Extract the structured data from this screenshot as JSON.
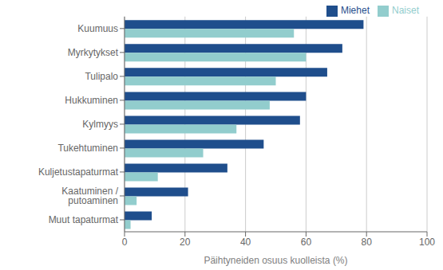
{
  "chart_data": {
    "type": "bar",
    "orientation": "horizontal",
    "categories": [
      "Kuumuus",
      "Myrkytykset",
      "Tulipalo",
      "Hukkuminen",
      "Kylmyys",
      "Tukehtuminen",
      "Kuljetustapaturmat",
      "Kaatuminen / putoaminen",
      "Muut tapaturmat"
    ],
    "series": [
      {
        "name": "Miehet",
        "color": "#1F4E8C",
        "values": [
          79,
          72,
          67,
          60,
          58,
          46,
          34,
          21,
          9
        ]
      },
      {
        "name": "Naiset",
        "color": "#92CDCD",
        "values": [
          56,
          60,
          50,
          48,
          37,
          26,
          11,
          4,
          2
        ]
      }
    ],
    "xlabel": "Päihtyneiden osuus kuolleista (%)",
    "xlim": [
      0,
      100
    ],
    "xticks": [
      0,
      20,
      40,
      60,
      80,
      100
    ],
    "grid": "x",
    "legend": "upper right"
  }
}
